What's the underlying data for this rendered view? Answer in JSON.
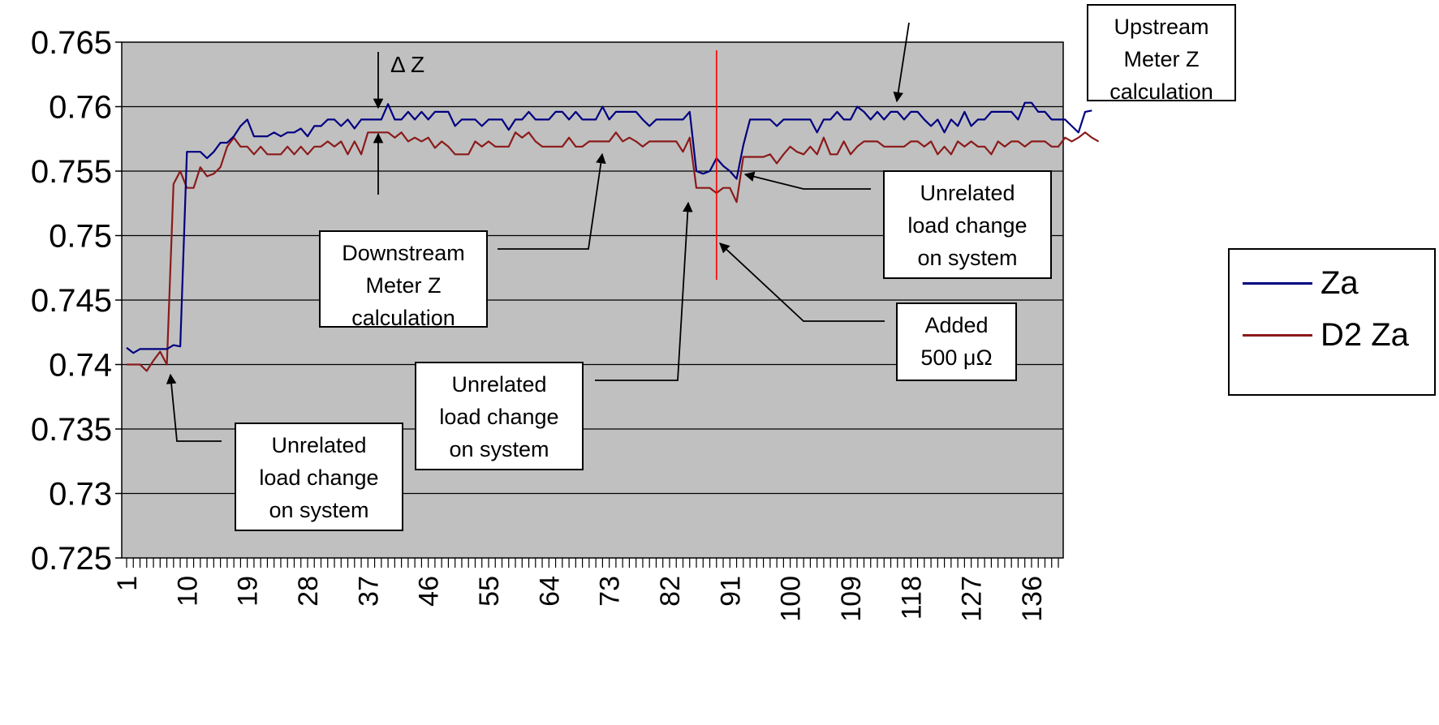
{
  "chart_data": {
    "type": "line",
    "title": "",
    "xlabel": "",
    "ylabel": "",
    "ylim": [
      0.725,
      0.765
    ],
    "yticks": [
      "0.725",
      "0.73",
      "0.735",
      "0.74",
      "0.745",
      "0.75",
      "0.755",
      "0.76",
      "0.765"
    ],
    "xticks": [
      "1",
      "10",
      "19",
      "28",
      "37",
      "46",
      "55",
      "64",
      "73",
      "82",
      "91",
      "100",
      "109",
      "118",
      "127",
      "136"
    ],
    "x_range": [
      1,
      140
    ],
    "grid": "horizontal",
    "background": "#c0c0c0",
    "legend_position": "right",
    "series": [
      {
        "name": "Za",
        "color": "#000080",
        "values": [
          0.7413,
          0.7409,
          0.7412,
          0.7412,
          0.7412,
          0.7412,
          0.7412,
          0.7415,
          0.7414,
          0.7565,
          0.7565,
          0.7565,
          0.756,
          0.7565,
          0.7572,
          0.7572,
          0.7577,
          0.7585,
          0.759,
          0.7577,
          0.7577,
          0.7577,
          0.758,
          0.7577,
          0.758,
          0.758,
          0.7583,
          0.7577,
          0.7585,
          0.7585,
          0.759,
          0.759,
          0.7585,
          0.759,
          0.7583,
          0.759,
          0.759,
          0.759,
          0.759,
          0.7602,
          0.759,
          0.759,
          0.7596,
          0.759,
          0.7596,
          0.759,
          0.7596,
          0.7596,
          0.7596,
          0.7585,
          0.759,
          0.759,
          0.759,
          0.7585,
          0.759,
          0.759,
          0.759,
          0.7582,
          0.759,
          0.759,
          0.7596,
          0.759,
          0.759,
          0.759,
          0.7596,
          0.7596,
          0.759,
          0.7596,
          0.759,
          0.759,
          0.759,
          0.76,
          0.759,
          0.7596,
          0.7596,
          0.7596,
          0.7596,
          0.759,
          0.7585,
          0.759,
          0.759,
          0.759,
          0.759,
          0.759,
          0.7596,
          0.755,
          0.7548,
          0.755,
          0.756,
          0.7554,
          0.755,
          0.7544,
          0.757,
          0.759,
          0.759,
          0.759,
          0.759,
          0.7585,
          0.759,
          0.759,
          0.759,
          0.759,
          0.759,
          0.758,
          0.759,
          0.759,
          0.7596,
          0.759,
          0.759,
          0.76,
          0.7596,
          0.759,
          0.7596,
          0.759,
          0.7596,
          0.7596,
          0.759,
          0.7596,
          0.7596,
          0.759,
          0.7585,
          0.759,
          0.758,
          0.759,
          0.7585,
          0.7596,
          0.7585,
          0.759,
          0.759,
          0.7596,
          0.7596,
          0.7596,
          0.7596,
          0.759,
          0.7603,
          0.7603,
          0.7596,
          0.7596,
          0.759,
          0.759,
          0.759,
          0.7585,
          0.758,
          0.7596,
          0.7597
        ]
      },
      {
        "name": "D2 Za",
        "color": "#8b1a1a",
        "values": [
          0.74,
          0.74,
          0.74,
          0.7395,
          0.7403,
          0.741,
          0.74,
          0.754,
          0.755,
          0.7537,
          0.7537,
          0.7553,
          0.7546,
          0.7548,
          0.7553,
          0.7569,
          0.7576,
          0.7569,
          0.7569,
          0.7563,
          0.7569,
          0.7563,
          0.7563,
          0.7563,
          0.7569,
          0.7563,
          0.7569,
          0.7563,
          0.7569,
          0.7569,
          0.7573,
          0.7569,
          0.7573,
          0.7563,
          0.7573,
          0.7563,
          0.758,
          0.758,
          0.758,
          0.758,
          0.7576,
          0.758,
          0.7573,
          0.7576,
          0.7573,
          0.7576,
          0.7568,
          0.7573,
          0.7569,
          0.7563,
          0.7563,
          0.7563,
          0.7573,
          0.7569,
          0.7573,
          0.7569,
          0.7569,
          0.7569,
          0.758,
          0.7576,
          0.758,
          0.7573,
          0.7569,
          0.7569,
          0.7569,
          0.7569,
          0.7576,
          0.7569,
          0.7569,
          0.7573,
          0.7573,
          0.7573,
          0.7573,
          0.758,
          0.7573,
          0.7576,
          0.7573,
          0.7569,
          0.7573,
          0.7573,
          0.7573,
          0.7573,
          0.7573,
          0.7565,
          0.7576,
          0.7537,
          0.7537,
          0.7537,
          0.7533,
          0.7537,
          0.7537,
          0.7526,
          0.7561,
          0.7561,
          0.7561,
          0.7561,
          0.7563,
          0.7556,
          0.7563,
          0.7569,
          0.7565,
          0.7563,
          0.7569,
          0.7563,
          0.7576,
          0.7563,
          0.7563,
          0.7573,
          0.7563,
          0.7569,
          0.7573,
          0.7573,
          0.7573,
          0.7569,
          0.7569,
          0.7569,
          0.7569,
          0.7573,
          0.7573,
          0.7569,
          0.7573,
          0.7563,
          0.7569,
          0.7563,
          0.7573,
          0.7569,
          0.7573,
          0.7569,
          0.7569,
          0.7563,
          0.7573,
          0.7569,
          0.7573,
          0.7573,
          0.7569,
          0.7573,
          0.7573,
          0.7573,
          0.7569,
          0.7569,
          0.7576,
          0.7573,
          0.7576,
          0.758,
          0.7576,
          0.7573
        ]
      }
    ],
    "marker_line": {
      "x": 89,
      "color": "#ff0000"
    },
    "annotations": [
      {
        "id": "upstream",
        "text": "Upstream\nMeter Z\ncalculation"
      },
      {
        "id": "downstream",
        "text": "Downstream\nMeter Z\ncalculation"
      },
      {
        "id": "load1",
        "text": "Unrelated\nload change\non system"
      },
      {
        "id": "load2",
        "text": "Unrelated\nload change\non system"
      },
      {
        "id": "load3",
        "text": "Unrelated\nload change\non system"
      },
      {
        "id": "added",
        "text": "Added\n500 μΩ"
      },
      {
        "id": "deltaz",
        "text": "Δ Z"
      }
    ]
  }
}
